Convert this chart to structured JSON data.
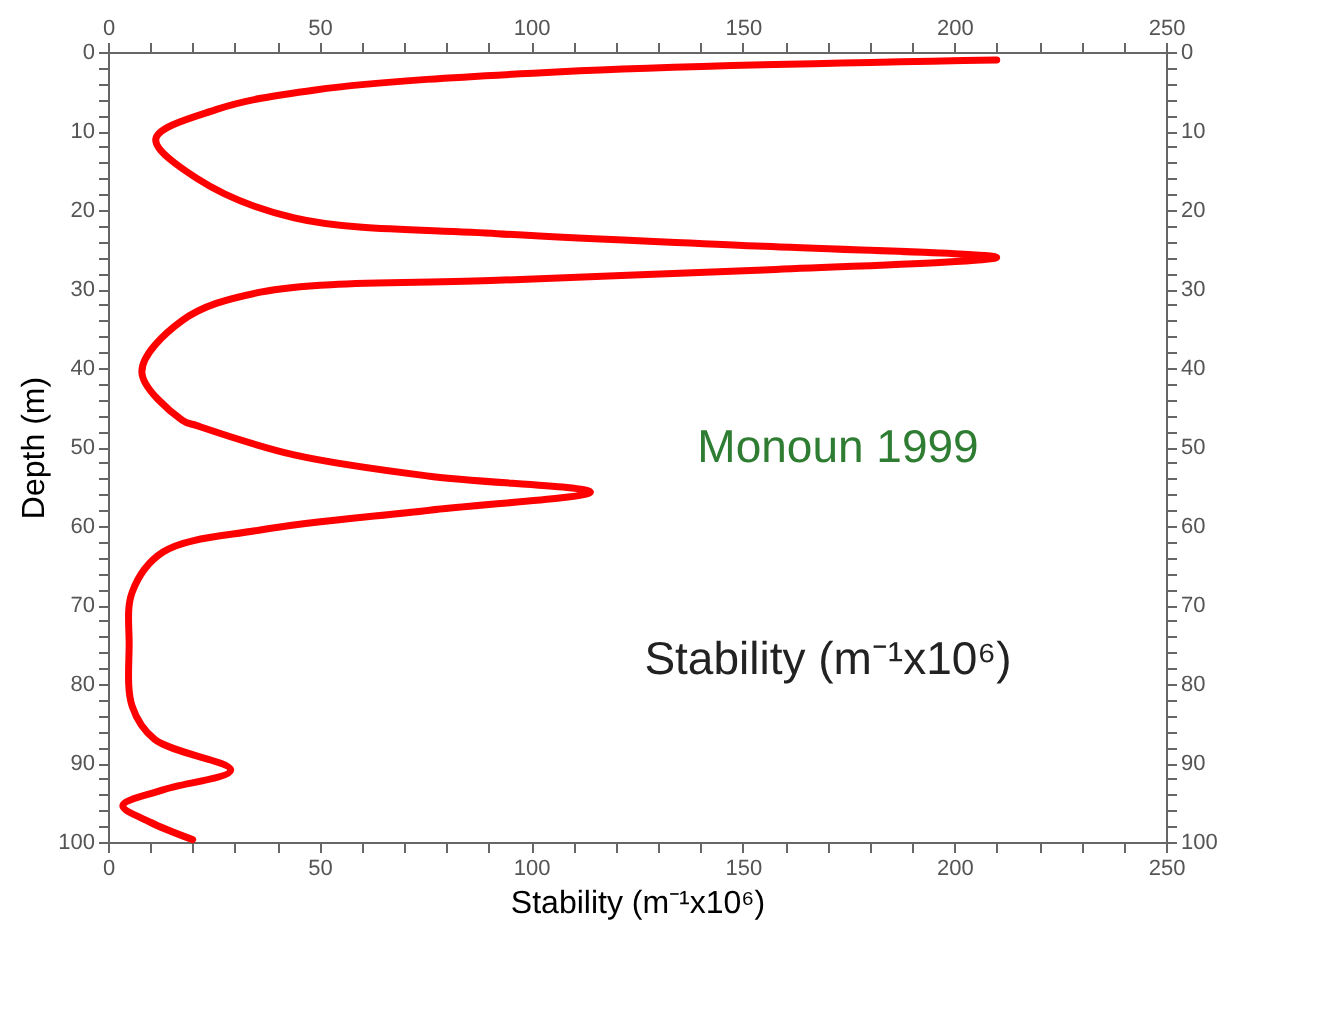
{
  "chart_data": {
    "type": "line",
    "xlabel": "Stability (m⁻¹x10⁶)",
    "ylabel": "Depth (m)",
    "annotations": [
      "Monoun 1999",
      "Stability (m⁻¹x10⁶)"
    ],
    "series": [
      {
        "color": "#ff0000",
        "x": [
          210,
          107,
          49,
          25.5,
          11.3,
          21,
          44,
          92,
          155,
          210,
          155,
          92,
          36,
          17.5,
          8,
          17.5,
          21,
          44,
          76,
          114,
          76,
          36,
          13,
          5.7,
          5,
          5.7,
          11,
          29,
          13,
          3.5,
          10,
          20
        ],
        "values": [
          1,
          2.5,
          4.8,
          7.3,
          11,
          16,
          21,
          23,
          24.6,
          26,
          27.6,
          28.9,
          30.4,
          34,
          40.5,
          46.6,
          47.3,
          51,
          53.7,
          55.7,
          58,
          60.5,
          63.3,
          68.4,
          75,
          82.8,
          87,
          90.9,
          93.4,
          95.4,
          97.5,
          99.7
        ]
      }
    ],
    "xlim": [
      0,
      250
    ],
    "xticks": [
      0,
      {
        "value": 10,
        "label": null
      },
      {
        "value": 20,
        "label": null
      },
      {
        "value": 30,
        "label": null
      },
      {
        "value": 40,
        "label": null
      },
      50,
      {
        "value": 60,
        "label": null
      },
      {
        "value": 70,
        "label": null
      },
      {
        "value": 80,
        "label": null
      },
      {
        "value": 90,
        "label": null
      },
      100,
      {
        "value": 110,
        "label": null
      },
      {
        "value": 120,
        "label": null
      },
      {
        "value": 130,
        "label": null
      },
      {
        "value": 140,
        "label": null
      },
      150,
      {
        "value": 160,
        "label": null
      },
      {
        "value": 170,
        "label": null
      },
      {
        "value": 180,
        "label": null
      },
      {
        "value": 190,
        "label": null
      },
      200,
      {
        "value": 210,
        "label": null
      },
      {
        "value": 220,
        "label": null
      },
      {
        "value": 230,
        "label": null
      },
      {
        "value": 240,
        "label": null
      },
      250
    ],
    "x2lim": [
      0,
      250
    ],
    "x2ticks": [
      0,
      {
        "value": 10,
        "label": null
      },
      {
        "value": 20,
        "label": null
      },
      {
        "value": 30,
        "label": null
      },
      {
        "value": 40,
        "label": null
      },
      50,
      {
        "value": 60,
        "label": null
      },
      {
        "value": 70,
        "label": null
      },
      {
        "value": 80,
        "label": null
      },
      {
        "value": 90,
        "label": null
      },
      100,
      {
        "value": 110,
        "label": null
      },
      {
        "value": 120,
        "label": null
      },
      {
        "value": 130,
        "label": null
      },
      {
        "value": 140,
        "label": null
      },
      150,
      {
        "value": 160,
        "label": null
      },
      {
        "value": 170,
        "label": null
      },
      {
        "value": 180,
        "label": null
      },
      {
        "value": 190,
        "label": null
      },
      200,
      {
        "value": 210,
        "label": null
      },
      {
        "value": 220,
        "label": null
      },
      {
        "value": 230,
        "label": null
      },
      {
        "value": 240,
        "label": null
      },
      250
    ],
    "ylim": [
      100,
      0
    ],
    "yticks": [
      0,
      {
        "value": 2,
        "label": null
      },
      {
        "value": 4,
        "label": null
      },
      {
        "value": 6,
        "label": null
      },
      {
        "value": 8,
        "label": null
      },
      10,
      {
        "value": 12,
        "label": null
      },
      {
        "value": 14,
        "label": null
      },
      {
        "value": 16,
        "label": null
      },
      {
        "value": 18,
        "label": null
      },
      20,
      {
        "value": 22,
        "label": null
      },
      {
        "value": 24,
        "label": null
      },
      {
        "value": 26,
        "label": null
      },
      {
        "value": 28,
        "label": null
      },
      30,
      {
        "value": 32,
        "label": null
      },
      {
        "value": 34,
        "label": null
      },
      {
        "value": 36,
        "label": null
      },
      {
        "value": 38,
        "label": null
      },
      40,
      {
        "value": 42,
        "label": null
      },
      {
        "value": 44,
        "label": null
      },
      {
        "value": 46,
        "label": null
      },
      {
        "value": 48,
        "label": null
      },
      50,
      {
        "value": 52,
        "label": null
      },
      {
        "value": 54,
        "label": null
      },
      {
        "value": 56,
        "label": null
      },
      {
        "value": 58,
        "label": null
      },
      60,
      {
        "value": 62,
        "label": null
      },
      {
        "value": 64,
        "label": null
      },
      {
        "value": 66,
        "label": null
      },
      {
        "value": 68,
        "label": null
      },
      70,
      {
        "value": 72,
        "label": null
      },
      {
        "value": 74,
        "label": null
      },
      {
        "value": 76,
        "label": null
      },
      {
        "value": 78,
        "label": null
      },
      80,
      {
        "value": 82,
        "label": null
      },
      {
        "value": 84,
        "label": null
      },
      {
        "value": 86,
        "label": null
      },
      {
        "value": 88,
        "label": null
      },
      90,
      {
        "value": 92,
        "label": null
      },
      {
        "value": 94,
        "label": null
      },
      {
        "value": 96,
        "label": null
      },
      {
        "value": 98,
        "label": null
      },
      100
    ],
    "y2lim": [
      100,
      0
    ],
    "y2ticks": [
      0,
      {
        "value": 2,
        "label": null
      },
      {
        "value": 4,
        "label": null
      },
      {
        "value": 6,
        "label": null
      },
      {
        "value": 8,
        "label": null
      },
      10,
      {
        "value": 12,
        "label": null
      },
      {
        "value": 14,
        "label": null
      },
      {
        "value": 16,
        "label": null
      },
      {
        "value": 18,
        "label": null
      },
      20,
      {
        "value": 22,
        "label": null
      },
      {
        "value": 24,
        "label": null
      },
      {
        "value": 26,
        "label": null
      },
      {
        "value": 28,
        "label": null
      },
      30,
      {
        "value": 32,
        "label": null
      },
      {
        "value": 34,
        "label": null
      },
      {
        "value": 36,
        "label": null
      },
      {
        "value": 38,
        "label": null
      },
      40,
      {
        "value": 42,
        "label": null
      },
      {
        "value": 44,
        "label": null
      },
      {
        "value": 46,
        "label": null
      },
      {
        "value": 48,
        "label": null
      },
      50,
      {
        "value": 52,
        "label": null
      },
      {
        "value": 54,
        "label": null
      },
      {
        "value": 56,
        "label": null
      },
      {
        "value": 58,
        "label": null
      },
      60,
      {
        "value": 62,
        "label": null
      },
      {
        "value": 64,
        "label": null
      },
      {
        "value": 66,
        "label": null
      },
      {
        "value": 68,
        "label": null
      },
      70,
      {
        "value": 72,
        "label": null
      },
      {
        "value": 74,
        "label": null
      },
      {
        "value": 76,
        "label": null
      },
      {
        "value": 78,
        "label": null
      },
      80,
      {
        "value": 82,
        "label": null
      },
      {
        "value": 84,
        "label": null
      },
      {
        "value": 86,
        "label": null
      },
      {
        "value": 88,
        "label": null
      },
      90,
      {
        "value": 92,
        "label": null
      },
      {
        "value": 94,
        "label": null
      },
      {
        "value": 96,
        "label": null
      },
      {
        "value": 98,
        "label": null
      },
      100
    ]
  }
}
